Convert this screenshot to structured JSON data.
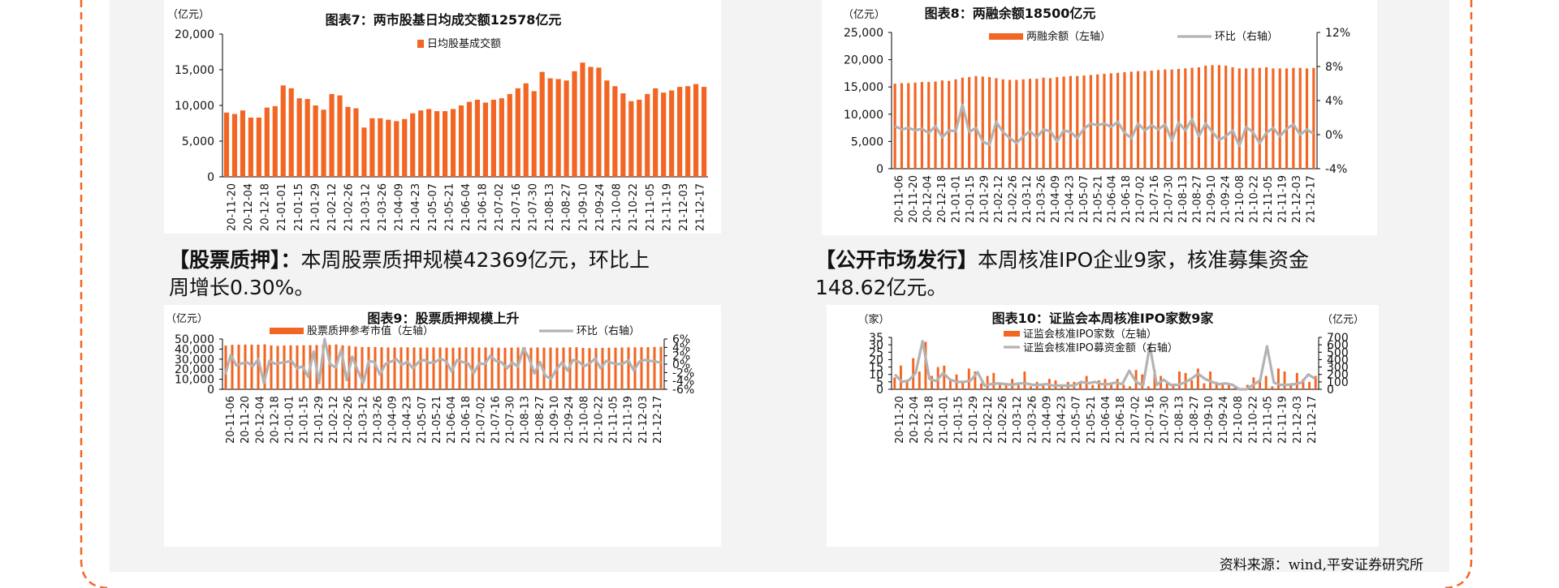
{
  "page": {
    "para_left": {
      "head": "【股票质押】",
      "colon": "：",
      "body": "本周股票质押规模42369亿元，环比上",
      "body2": "周增长0.30%。"
    },
    "para_right": {
      "head": "【公开市场发行】",
      "body": "本周核准IPO企业9家，核准募集资金",
      "body2": "148.62亿元。"
    },
    "source": "资料来源：wind,平安证券研究所",
    "colors": {
      "orange": "#f26522",
      "gray": "#b3b3b3",
      "frame": "#f26522"
    }
  },
  "chart_data": [
    {
      "id": "c7",
      "type": "bar",
      "title": "图表7：两市股基日均成交额12578亿元",
      "unit_left": "（亿元）",
      "legend": [
        "日均股基成交额"
      ],
      "left_ticks": [
        "20,000",
        "15,000",
        "10,000",
        "5,000",
        "0"
      ],
      "ylim": [
        0,
        20000
      ],
      "xticks": [
        "20-11-20",
        "20-12-04",
        "20-12-18",
        "21-01-01",
        "21-01-15",
        "21-01-29",
        "21-02-12",
        "21-02-26",
        "21-03-12",
        "21-03-26",
        "21-04-09",
        "21-04-23",
        "21-05-07",
        "21-05-21",
        "21-06-04",
        "21-06-18",
        "21-07-02",
        "21-07-16",
        "21-07-30",
        "21-08-13",
        "21-08-27",
        "21-09-10",
        "21-09-24",
        "21-10-08",
        "21-10-22",
        "21-11-05",
        "21-11-19",
        "21-12-03",
        "21-12-17"
      ],
      "series": [
        {
          "name": "日均股基成交额",
          "values": [
            9000,
            8800,
            9300,
            8300,
            8300,
            9700,
            9900,
            12800,
            12400,
            11000,
            10900,
            10000,
            9400,
            11600,
            11400,
            9800,
            9600,
            6900,
            8200,
            8200,
            8000,
            7800,
            8100,
            8900,
            9300,
            9500,
            9200,
            9200,
            9500,
            10000,
            10500,
            10800,
            10400,
            10800,
            11000,
            11600,
            12400,
            13100,
            12000,
            14700,
            13800,
            13700,
            13500,
            14800,
            16000,
            15400,
            15300,
            13500,
            12700,
            11700,
            10600,
            10800,
            11600,
            12400,
            11800,
            12100,
            12600,
            12700,
            13000,
            12600
          ]
        }
      ]
    },
    {
      "id": "c8",
      "type": "bar+line",
      "title": "图表8：两融余额18500亿元",
      "unit_left": "（亿元）",
      "legend": [
        "两融余额（左轴）",
        "环比（右轴）"
      ],
      "left_ticks": [
        "25,000",
        "20,000",
        "15,000",
        "10,000",
        "5,000",
        "0"
      ],
      "right_ticks": [
        "12%",
        "8%",
        "4%",
        "0%",
        "-4%"
      ],
      "ylim": [
        0,
        25000
      ],
      "y2lim": [
        -4,
        12
      ],
      "xticks": [
        "20-11-06",
        "20-11-20",
        "20-12-04",
        "20-12-18",
        "21-01-01",
        "21-01-15",
        "21-01-29",
        "21-02-12",
        "21-02-26",
        "21-03-12",
        "21-03-26",
        "21-04-09",
        "21-04-23",
        "21-05-07",
        "21-05-21",
        "21-06-04",
        "21-06-18",
        "21-07-02",
        "21-07-16",
        "21-07-30",
        "21-08-13",
        "21-08-27",
        "21-09-10",
        "21-09-24",
        "21-10-08",
        "21-10-22",
        "21-11-05",
        "21-11-19",
        "21-12-03",
        "21-12-17"
      ],
      "series": [
        {
          "name": "两融余额（左轴）",
          "values": [
            15600,
            15700,
            15700,
            15800,
            15900,
            15900,
            16000,
            16200,
            16100,
            16400,
            16700,
            16800,
            17000,
            16900,
            16800,
            16600,
            16400,
            16300,
            16300,
            16400,
            16500,
            16500,
            16700,
            16600,
            16800,
            16900,
            17000,
            17000,
            17100,
            17200,
            17300,
            17400,
            17500,
            17600,
            17700,
            17800,
            17900,
            17900,
            18000,
            18100,
            18200,
            18200,
            18300,
            18400,
            18500,
            18600,
            18900,
            19000,
            19000,
            18900,
            18600,
            18400,
            18400,
            18500,
            18500,
            18600,
            18400,
            18400,
            18400,
            18500,
            18500,
            18400,
            18500
          ]
        },
        {
          "name": "环比（右轴）",
          "values": [
            1,
            0.6,
            0.8,
            0.5,
            0.7,
            0.2,
            1,
            -0.3,
            0.5,
            0.4,
            3.5,
            0.3,
            0.8,
            -0.8,
            -1.2,
            1.5,
            0.3,
            -0.4,
            -1,
            -0.2,
            0.4,
            -0.3,
            0.6,
            0.4,
            -0.8,
            0.5,
            0.3,
            -0.4,
            0.7,
            1.3,
            1.1,
            1.3,
            0.9,
            1.5,
            0.2,
            -0.4,
            1.3,
            0.5,
            1.1,
            0.6,
            1.2,
            -0.7,
            1.4,
            0.5,
            1.8,
            -0.2,
            1.3,
            0.3,
            -0.6,
            -0.2,
            0.5,
            -1.3,
            0.9,
            0.3,
            -1,
            0.2,
            0.8,
            -0.2,
            0.7,
            1.2,
            0,
            0.6,
            0.1
          ]
        }
      ]
    },
    {
      "id": "c9",
      "type": "bar+line",
      "title": "图表9：股票质押规模上升",
      "unit_left": "（亿元）",
      "legend": [
        "股票质押参考市值（左轴）",
        "环比（右轴）"
      ],
      "left_ticks": [
        "50,000",
        "40,000",
        "30,000",
        "20,000",
        "10,000",
        "0"
      ],
      "right_ticks": [
        "6%",
        "4%",
        "2%",
        "0%",
        "-2%",
        "-4%",
        "-6%"
      ],
      "ylim": [
        0,
        50000
      ],
      "y2lim": [
        -6,
        6
      ],
      "xticks": [
        "20-11-06",
        "20-11-20",
        "20-12-04",
        "20-12-18",
        "21-01-01",
        "21-01-15",
        "21-01-29",
        "21-02-12",
        "21-02-26",
        "21-03-12",
        "21-03-26",
        "21-04-09",
        "21-04-23",
        "21-05-07",
        "21-05-21",
        "21-06-04",
        "21-06-18",
        "21-07-02",
        "21-07-16",
        "21-07-30",
        "21-08-13",
        "21-08-27",
        "21-09-10",
        "21-09-24",
        "21-10-08",
        "21-10-22",
        "21-11-05",
        "21-11-19",
        "21-12-03",
        "21-12-17"
      ],
      "series": [
        {
          "name": "股票质押参考市值（左轴）",
          "values": [
            43500,
            44200,
            44400,
            44500,
            44400,
            44400,
            44700,
            43600,
            43200,
            43600,
            43700,
            43600,
            43800,
            43900,
            44000,
            44200,
            44200,
            44600,
            43700,
            43200,
            42400,
            42000,
            42100,
            42000,
            41800,
            41600,
            41600,
            41700,
            41700,
            41600,
            41500,
            41500,
            41700,
            41600,
            41400,
            41400,
            41600,
            41700,
            41700,
            41500,
            41600,
            41500,
            41400,
            41300,
            41500,
            41600,
            41700,
            41400,
            41600,
            41400,
            41500,
            41400,
            41500,
            41700,
            41800,
            41200,
            40900,
            41000,
            41200,
            41300,
            41400,
            41600,
            41700,
            41700,
            41800,
            41900,
            42100,
            42200
          ]
        },
        {
          "name": "环比（右轴）",
          "values": [
            -2.5,
            2.2,
            -0.3,
            0.2,
            0.4,
            -0.5,
            1.2,
            -4.5,
            0.8,
            0.1,
            0.3,
            0.5,
            0.8,
            -1,
            -0.5,
            -3,
            3,
            -4.5,
            6,
            0,
            -0.8,
            3.5,
            -3.8,
            1.8,
            -1.5,
            -4.5,
            0.8,
            0.5,
            -2.5,
            0,
            0.6,
            1.2,
            -0.2,
            0.6,
            -1,
            0.5,
            1,
            0.3,
            0.5,
            1.3,
            0.7,
            -1.7,
            1,
            0.5,
            0.2,
            -2.2,
            0.2,
            0,
            2,
            0.8,
            0.5,
            -1,
            0.4,
            -0.6,
            3.8,
            1.5,
            -2.2,
            0.5,
            -2.8,
            -3.5,
            -1.2,
            0.4,
            -1.5,
            1,
            0.6,
            -0.5,
            0.2,
            1.3,
            -1,
            0.8,
            0.3,
            0,
            0.1,
            0.9,
            -1.5,
            0.6,
            1,
            0.8,
            0.6,
            0.3
          ]
        }
      ]
    },
    {
      "id": "c10",
      "type": "bar+line",
      "title": "图表10：证监会本周核准IPO家数9家",
      "unit_left": "（家）",
      "unit_right": "（亿元）",
      "legend": [
        "证监会核准IPO家数（左轴）",
        "证监会核准IPO募资金额（右轴）"
      ],
      "left_ticks": [
        "35",
        "30",
        "25",
        "20",
        "15",
        "10",
        "5",
        "0"
      ],
      "right_ticks": [
        "700",
        "600",
        "500",
        "400",
        "300",
        "200",
        "100",
        "0"
      ],
      "ylim": [
        0,
        35
      ],
      "y2lim": [
        0,
        700
      ],
      "xticks": [
        "20-11-20",
        "20-12-04",
        "20-12-18",
        "21-01-01",
        "21-01-15",
        "21-01-29",
        "21-02-12",
        "21-02-26",
        "21-03-12",
        "21-03-26",
        "21-04-09",
        "21-04-23",
        "21-05-07",
        "21-05-21",
        "21-06-04",
        "21-06-18",
        "21-07-02",
        "21-07-16",
        "21-07-30",
        "21-08-13",
        "21-08-27",
        "21-09-10",
        "21-09-24",
        "21-10-08",
        "21-10-22",
        "21-11-05",
        "21-11-19",
        "21-12-03",
        "21-12-17"
      ],
      "series": [
        {
          "name": "证监会核准IPO家数（左轴）",
          "values": [
            8,
            16,
            6,
            21,
            12,
            32,
            9,
            15,
            16,
            7,
            10,
            5,
            14,
            12,
            4,
            9,
            11,
            3,
            4,
            7,
            3,
            12,
            2,
            5,
            4,
            7,
            6,
            3,
            5,
            5,
            4,
            9,
            3,
            6,
            7,
            3,
            7,
            3,
            2,
            13,
            10,
            2,
            13,
            9,
            4,
            3,
            12,
            11,
            6,
            14,
            4,
            12,
            5,
            3,
            4,
            2,
            0,
            3,
            8,
            6,
            9,
            2,
            14,
            12,
            3,
            11,
            7,
            5,
            9
          ]
        },
        {
          "name": "证监会核准IPO募资金额（右轴）",
          "values": [
            200,
            100,
            120,
            220,
            650,
            140,
            110,
            220,
            130,
            100,
            100,
            120,
            230,
            50,
            70,
            80,
            70,
            60,
            80,
            80,
            60,
            60,
            70,
            50,
            50,
            50,
            50,
            100,
            80,
            100,
            70,
            70,
            90,
            70,
            250,
            100,
            50,
            590,
            60,
            130,
            60,
            60,
            90,
            140,
            210,
            140,
            100,
            70,
            80,
            60,
            0,
            0,
            60,
            120,
            580,
            90,
            60,
            60,
            70,
            90,
            200,
            140
          ]
        }
      ]
    }
  ]
}
